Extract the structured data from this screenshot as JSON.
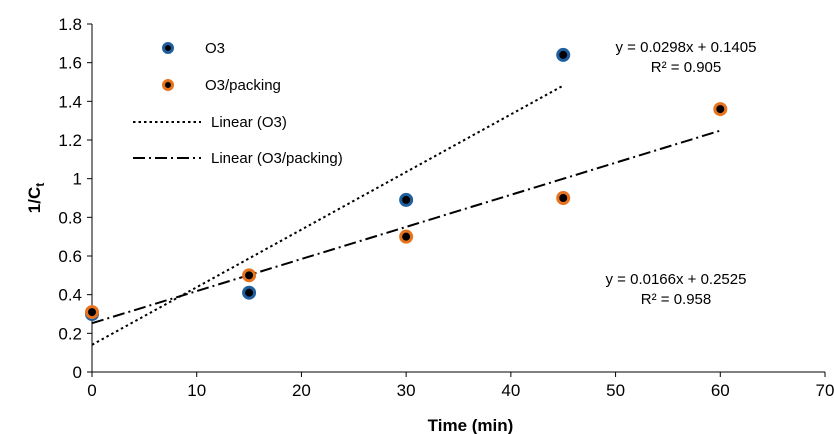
{
  "chart_data": {
    "type": "scatter",
    "xlabel": "Time  (min)",
    "ylabel": "1/C",
    "ylabel_subscript": "t",
    "xlim": [
      0,
      70
    ],
    "ylim": [
      0,
      1.8
    ],
    "x_ticks": [
      "0",
      "10",
      "20",
      "30",
      "40",
      "50",
      "60",
      "70"
    ],
    "y_ticks": [
      "0",
      "0.2",
      "0.4",
      "0.6",
      "0.8",
      "1",
      "1.2",
      "1.4",
      "1.6",
      "1.8"
    ],
    "grid": false,
    "legend_position": "top-left",
    "series": [
      {
        "name": "O3",
        "marker_color": "#1f5fa0",
        "marker_edge": "#7fb3e0",
        "points": [
          {
            "x": 0,
            "y": 0.3
          },
          {
            "x": 15,
            "y": 0.41
          },
          {
            "x": 30,
            "y": 0.89
          },
          {
            "x": 45,
            "y": 1.64
          }
        ]
      },
      {
        "name": "O3/packing",
        "marker_color": "#e8731f",
        "marker_edge": "#f2a060",
        "points": [
          {
            "x": 0,
            "y": 0.31
          },
          {
            "x": 15,
            "y": 0.5
          },
          {
            "x": 30,
            "y": 0.7
          },
          {
            "x": 45,
            "y": 0.9
          },
          {
            "x": 60,
            "y": 1.36
          }
        ]
      }
    ],
    "trendlines": [
      {
        "name": "Linear (O3)",
        "slope": 0.0298,
        "intercept": 0.1405,
        "x_range": [
          0,
          45
        ],
        "style": "dotted",
        "equation": "y = 0.0298x + 0.1405",
        "r2": "R² = 0.905"
      },
      {
        "name": "Linear (O3/packing)",
        "slope": 0.0166,
        "intercept": 0.2525,
        "x_range": [
          0,
          60
        ],
        "style": "dash-dot",
        "equation": "y = 0.0166x + 0.2525",
        "r2": "R² = 0.958"
      }
    ]
  }
}
